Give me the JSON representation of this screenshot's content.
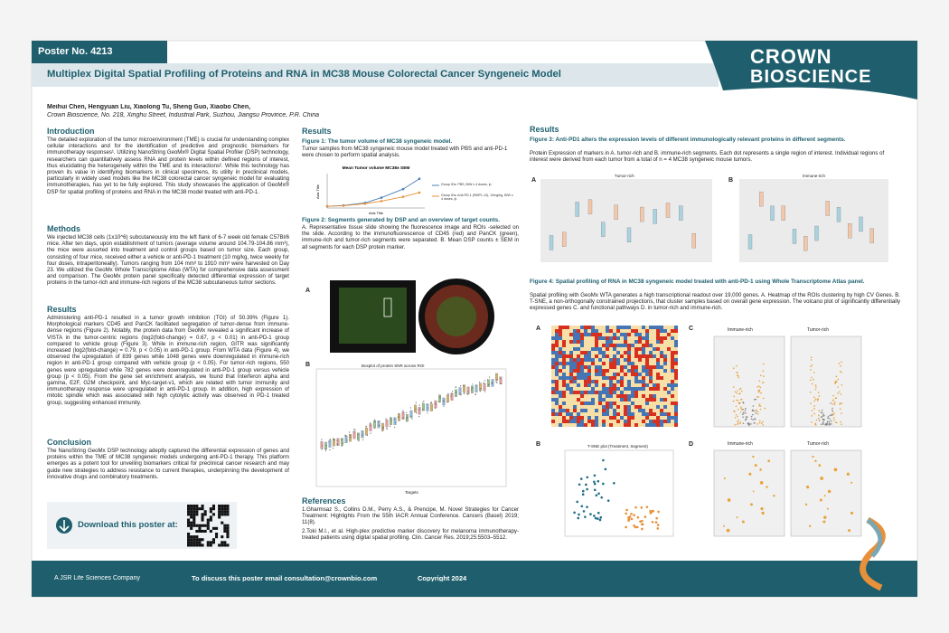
{
  "header": {
    "poster_no": "Poster No. 4213",
    "title": "Multiplex Digital Spatial Profiling of Proteins and RNA in MC38 Mouse Colorectal Cancer Syngeneic Model",
    "logo": [
      "CROWN",
      "BIOSCIENCE"
    ]
  },
  "authors": "Meihui Chen, Hengyuan Liu, Xiaolong Tu, Sheng Guo, Xiaobo Chen,",
  "affiliation": "Crown Bioscience, No. 218, Xinghu Street, Industrial Park, Suzhou, Jiangsu Province, P.R. China",
  "sections": {
    "introduction": {
      "heading": "Introduction",
      "text": "The detailed exploration of the tumor microenvironment (TME) is crucial for understanding complex cellular interactions and for the identification of predictive and prognostic biomarkers for immunotherapy responses¹. Utilizing NanoString GeoMx® Digital Spatial Profiler (DSP) technology, researchers can quantitatively assess RNA and protein levels within defined regions of interest, thus elucidating the heterogeneity within the TME and its interactions². While this technology has proven its value in identifying biomarkers in clinical specimens, its utility in preclinical models, particularly in widely used models like the MC38 colorectal cancer syngeneic model for evaluating immunotherapies, has yet to be fully explored. This study showcases the application of GeoMx® DSP for spatial profiling of proteins and RNA in the MC38 model treated with anti-PD-1."
    },
    "methods": {
      "heading": "Methods",
      "text": "We injected MC38 cells (1x10^6) subcutaneously into the left flank of 6-7 week old female C57Bl/6 mice. After ten days, upon establishment of tumors (average volume around 104.79-104.86 mm³), the mice were assorted into treatment and control groups based on tumor size. Each group, consisting of four mice, received either a vehicle or anti-PD-1 treatment (10 mg/kg, twice weekly for four doses, intraperitoneally). Tumors ranging from 104 mm³ to 1910 mm³ were harvested on Day 23. We utilized the GeoMx Whole Transcriptome Atlas (WTA) for comprehensive data assessment and comparison. The GeoMx protein panel specifically detected differential expression of target proteins in the tumor-rich and immune-rich regions of the MC38 subcutaneous tumor sections."
    },
    "results": {
      "heading": "Results",
      "text": "Administering anti-PD-1 resulted in a tumor growth inhibition (TGI) of 50.39% (Figure 1). Morphological markers CD45 and PanCK facilitated segregation of tumor-dense from immune-dense regions (Figure 2). Notably, the protein data from GeoMx revealed a significant increase of VISTA in the tumor-centric regions (log2(fold-change) = 0.67, p < 0.01) in anti-PD-1 group compared to vehicle group (Figure 3). While in immune-rich region, GITR was significantly increased (log2(fold-change) = 0.79, p < 0.05) in anti-PD-1 group. From WTA data (Figure 4), we observed the upregulation of 839 genes while 1048 genes were downregulated in immune-rich region in anti-PD-1 group compared with vehicle group (p < 0.05). For tumor-rich regions, 550 genes were upregulated while 782 genes were downregulated in anti-PD-1 group versus vehicle group (p < 0.05). From the gene set enrichment analysis, we found that Interferon alpha and gamma, E2F, G2M checkpoint, and Myc-target-v1, which are related with tumor immunity and immunotherapy response were upregulated in anti-PD-1 group. In addition, high expression of mitotic spindle which was associated with high cytolytic activity was observed in PD-1 treated group, suggesting enhanced immunity."
    },
    "conclusion": {
      "heading": "Conclusion",
      "text": "The NanoString GeoMx DSP technology adeptly captured the differential expression of genes and proteins within the TME of MC38 syngeneic models undergoing anti-PD-1 therapy. This platform emerges as a potent tool for unveiling biomarkers critical for preclinical cancer research and may guide new strategies to address resistance to current therapies, underpinning the development of innovative drugs and combinatory treatments."
    }
  },
  "download": "Download this poster at:",
  "results_heading": "Results",
  "figures": {
    "fig1": {
      "title": "Figure 1: The tumor volume of MC38 syngeneic model.",
      "caption": "Tumor samples from MC38 syngeneic mouse model treated with PBS and anti-PD-1 were chosen to perform spatial analysis.",
      "chart": {
        "title": "Mean Tumor volume MC38± SEM",
        "x_label": "Axis Title",
        "y_label": "Axis Title",
        "x": [
          0,
          3,
          7,
          10,
          14,
          17
        ],
        "xlim": [
          0,
          18
        ],
        "ylim": [
          0,
          2000
        ],
        "series": [
          {
            "name": "Group IDs: PBS, BIW x 4 doses, ip",
            "color": "#4a7fb5",
            "values": [
              100,
              150,
              300,
              600,
              1100,
              1700
            ]
          },
          {
            "name": "Group IDs: Anti-PD-1 (RMP1-14), 10mg/kg, BIW x 4 doses, ip",
            "color": "#e8903a",
            "values": [
              100,
              130,
              250,
              400,
              650,
              900
            ]
          }
        ]
      }
    },
    "fig2": {
      "title": "Figure 2: Segments generated by DSP and an overview of target counts.",
      "caption": "A. Representative tissue slide showing the fluorescence image and ROIs -selected on the slide. According to the immunofluorescence of CD45 (red) and PanCK (green), immune-rich and tumor-rich segments were separated. B. Mean DSP counts ± SEM in all segments for each DSP protein marker.",
      "panel_a": "A",
      "panel_b": "B",
      "boxplot_title": "Boxplot of protein SNR across ROI",
      "x_label": "Targets"
    },
    "fig3": {
      "title": "Figure 3: Anti-PD1 alters the expression levels of different immunologically relevant proteins in different segments.",
      "caption": "Protein Expression of markers in A. tumor-rich and B. immune-rich segments. Each dot represents a single region of interest. Individual regions of interest were derived from each tumor from a total of n = 4 MC38 syngeneic mouse tumors.",
      "panel_a": "A",
      "panel_b": "B",
      "panel_a_title": "Tumor-rich",
      "panel_b_title": "Immune-rich"
    },
    "fig4": {
      "title": "Figure 4: Spatial profiling of RNA in MC38 syngeneic model treated with anti-PD-1 using Whole Transcriptome Atlas panel.",
      "caption": "Spatial profiling with GeoMx WTA generates a high transcriptional readout over 19,000 genes. A. Heatmap of the ROIs clustering by high CV Genes. B. T-SNE, a non-orthogonally constrained projections, that cluster samples based on overall gene expression. The volcano plot of significantly differentially expressed genes C. and functional pathways D. in tumor-rich and immune-rich.",
      "panel_a": "A",
      "panel_b": "B",
      "panel_c": "C",
      "panel_d": "D",
      "immune_rich": "Immune-rich",
      "tumor_rich": "Tumor-rich",
      "tsne_title": "T-SNE plot (Treatment, Segment)"
    }
  },
  "references": {
    "heading": "References",
    "items": [
      "1.Gharmsaz S., Collins D.M., Perry A.S., & Prencipe, M. Novel Strategies for Cancer Treatment: Highlights From the 55th IACR Annual Conference. Cancers (Basel) 2019; 11(8).",
      "2.Toki M.I., et al. High-plex predictive marker discovery for melanoma immunotherapy-treated patients using digital spatial profiling. Clin. Cancer Res. 2019;25:5503–5512."
    ]
  },
  "footer": {
    "company": "A JSR Life Sciences Company",
    "contact": "To discuss this poster email consultation@crownbio.com",
    "copyright": "Copyright 2024"
  }
}
